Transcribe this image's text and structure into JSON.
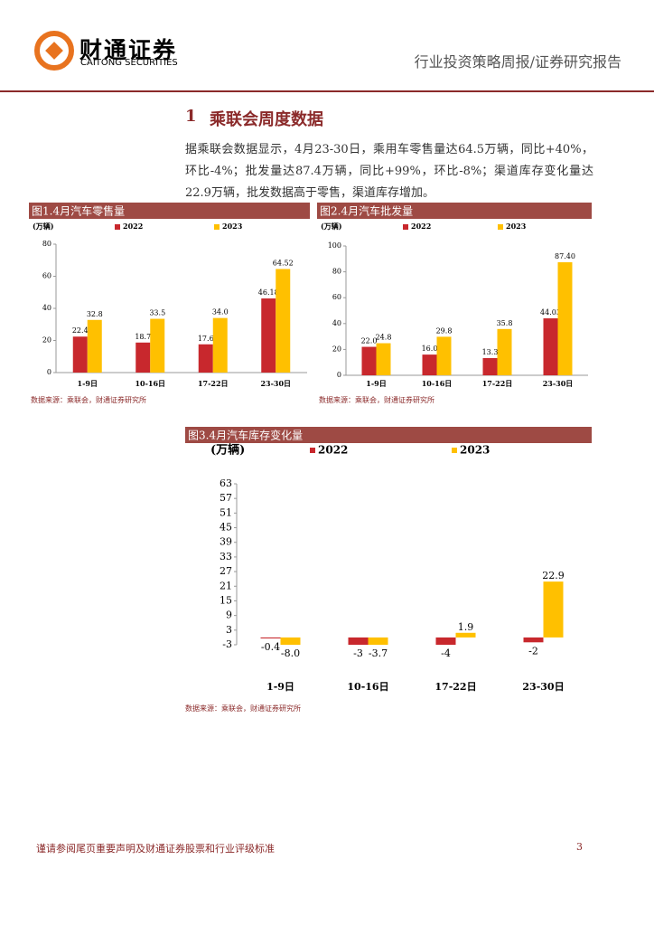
{
  "header": {
    "company": "财通证券",
    "company_en": "CAITONG SECURITIES",
    "report_type": "行业投资策略周报/证券研究报告"
  },
  "section": {
    "number": "1",
    "title": "乘联会周度数据"
  },
  "paragraph": "据乘联会数据显示，4月23-30日，乘用车零售量达64.5万辆，同比+40%，环比-4%；批发量达87.4万辆，同比+99%，环比-8%；渠道库存变化量达22.9万辆，批发数据高于零售，渠道库存增加。",
  "chart_data": [
    {
      "type": "bar",
      "title": "图1.4月汽车零售量",
      "unit": "(万辆)",
      "categories": [
        "1-9日",
        "10-16日",
        "17-22日",
        "23-30日"
      ],
      "series": [
        {
          "name": "2022",
          "color": "#c8282d",
          "values": [
            22.4,
            18.7,
            17.6,
            46.18
          ]
        },
        {
          "name": "2023",
          "color": "#ffc000",
          "values": [
            32.8,
            33.5,
            34.0,
            64.52
          ],
          "value_labels": [
            "32.8",
            "33.5",
            "34.0",
            "64.52"
          ]
        }
      ],
      "ylim": [
        0,
        80
      ],
      "yticks": [
        0,
        20,
        40,
        60,
        80
      ],
      "source": "数据来源：乘联会，财通证券研究所"
    },
    {
      "type": "bar",
      "title": "图2.4月汽车批发量",
      "unit": "(万辆)",
      "categories": [
        "1-9日",
        "10-16日",
        "17-22日",
        "23-30日"
      ],
      "series": [
        {
          "name": "2022",
          "color": "#c8282d",
          "values": [
            22.0,
            16.0,
            13.3,
            44.03
          ],
          "value_labels": [
            "22.0",
            "16.0",
            "13.3",
            "44.03"
          ]
        },
        {
          "name": "2023",
          "color": "#ffc000",
          "values": [
            24.8,
            29.8,
            35.8,
            87.4
          ],
          "value_labels": [
            "24.8",
            "29.8",
            "35.8",
            "87.40"
          ]
        }
      ],
      "ylim": [
        0,
        100
      ],
      "yticks": [
        0,
        20,
        40,
        60,
        80,
        100
      ],
      "source": "数据来源：乘联会，财通证券研究所"
    },
    {
      "type": "bar",
      "title": "图3.4月汽车库存变化量",
      "unit": "(万辆)",
      "categories": [
        "1-9日",
        "10-16日",
        "17-22日",
        "23-30日"
      ],
      "series": [
        {
          "name": "2022",
          "color": "#c8282d",
          "values": [
            -0.4,
            -3,
            -4,
            -2
          ]
        },
        {
          "name": "2023",
          "color": "#ffc000",
          "values": [
            -8.0,
            -3.7,
            1.9,
            22.9
          ],
          "value_labels": [
            "-8.0",
            "-3.7",
            "1.9",
            "22.9"
          ]
        }
      ],
      "ylim": [
        -3,
        63
      ],
      "yticks": [
        -3,
        3,
        9,
        15,
        21,
        27,
        33,
        39,
        45,
        51,
        57,
        63
      ],
      "source": "数据来源：乘联会，财通证券研究所"
    }
  ],
  "footer": {
    "disclaimer": "谨请参阅尾页重要声明及财通证券股票和行业评级标准",
    "page": 3
  }
}
